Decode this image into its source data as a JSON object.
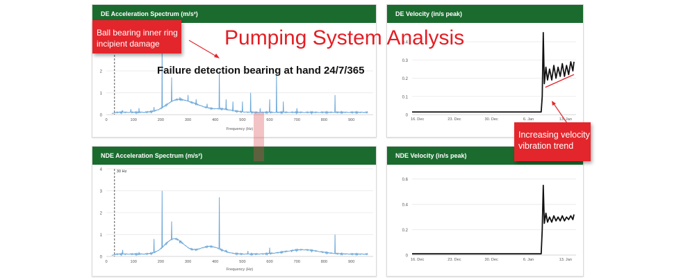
{
  "overlay": {
    "title": "Pumping System Analysis",
    "subtitle": "Failure detection bearing at hand 24/7/365",
    "callout_bearing": "Ball bearing inner ring incipient damage",
    "callout_velocity": "Increasing velocity vibration trend",
    "accent_red": "#e3262c"
  },
  "colors": {
    "header_green": "#1b6b2f",
    "spectrum_blue": "#6aa6d8",
    "trend_black": "#111111"
  },
  "chart_data": [
    {
      "id": "de_accel",
      "type": "line",
      "title": "DE Acceleration Spectrum (m/s²)",
      "xlabel": "Frequency (Hz)",
      "ylabel": "",
      "xlim": [
        0,
        980
      ],
      "ylim": [
        0,
        4
      ],
      "xticks": [
        "0",
        "100",
        "200",
        "300",
        "400",
        "500",
        "600",
        "700",
        "800",
        "900"
      ],
      "yticks": [
        "0",
        "1",
        "2"
      ],
      "marker_line_x": 30,
      "baseline": 0.05,
      "humps": [
        [
          260,
          0.55,
          40
        ],
        [
          330,
          0.25,
          35
        ],
        [
          420,
          0.15,
          40
        ]
      ],
      "peaks": [
        [
          60,
          0.2
        ],
        [
          90,
          0.25
        ],
        [
          120,
          0.3
        ],
        [
          175,
          0.35
        ],
        [
          205,
          3.0
        ],
        [
          240,
          1.7
        ],
        [
          270,
          0.8
        ],
        [
          300,
          0.9
        ],
        [
          330,
          0.7
        ],
        [
          370,
          0.5
        ],
        [
          415,
          2.0
        ],
        [
          440,
          0.7
        ],
        [
          465,
          0.6
        ],
        [
          500,
          0.6
        ],
        [
          530,
          1.0
        ],
        [
          565,
          0.3
        ],
        [
          600,
          0.7
        ],
        [
          625,
          1.8
        ],
        [
          650,
          0.6
        ],
        [
          700,
          0.3
        ],
        [
          840,
          0.9
        ]
      ]
    },
    {
      "id": "nde_accel",
      "type": "line",
      "title": "NDE Acceleration Spectrum (m/s²)",
      "xlabel": "Frequency (Hz)",
      "ylabel": "",
      "xlim": [
        0,
        980
      ],
      "ylim": [
        0,
        4
      ],
      "xticks": [
        "0",
        "100",
        "200",
        "300",
        "400",
        "500",
        "600",
        "700",
        "800",
        "900"
      ],
      "yticks": [
        "0",
        "1",
        "2",
        "3",
        "4"
      ],
      "marker_line_x": 30,
      "marker_label": "30 Hz",
      "baseline": 0.05,
      "humps": [
        [
          250,
          0.7,
          35
        ],
        [
          380,
          0.35,
          40
        ],
        [
          720,
          0.2,
          60
        ]
      ],
      "peaks": [
        [
          60,
          0.3
        ],
        [
          120,
          0.2
        ],
        [
          175,
          0.8
        ],
        [
          205,
          3.0
        ],
        [
          240,
          1.6
        ],
        [
          270,
          0.6
        ],
        [
          330,
          0.3
        ],
        [
          415,
          2.7
        ],
        [
          440,
          0.3
        ],
        [
          520,
          0.25
        ],
        [
          600,
          0.4
        ],
        [
          680,
          0.2
        ],
        [
          840,
          1.0
        ]
      ]
    },
    {
      "id": "de_velocity",
      "type": "line",
      "title": "DE Velocity (in/s peak)",
      "xlabel": "",
      "ylabel": "",
      "xlim": [
        0,
        31
      ],
      "ylim": [
        0,
        0.48
      ],
      "xticks": [
        "16. Dec",
        "23. Dec",
        "30. Dec",
        "6. Jan",
        "13. Jan"
      ],
      "yticks": [
        "0",
        "0.1",
        "0.2",
        "0.3",
        "0.4"
      ],
      "x": [
        0,
        24.4,
        24.6,
        24.8,
        25.0,
        25.3,
        25.6,
        26.0,
        26.4,
        26.8,
        27.2,
        27.6,
        28.0,
        28.4,
        28.8,
        29.2,
        29.6,
        30.0,
        30.4,
        30.6
      ],
      "y": [
        0.015,
        0.015,
        0.1,
        0.45,
        0.17,
        0.26,
        0.19,
        0.25,
        0.19,
        0.27,
        0.2,
        0.26,
        0.21,
        0.28,
        0.21,
        0.27,
        0.22,
        0.29,
        0.24,
        0.29
      ],
      "trend_line": [
        [
          25.2,
          0.15
        ],
        [
          30.6,
          0.22
        ]
      ]
    },
    {
      "id": "nde_velocity",
      "type": "line",
      "title": "NDE Velocity (in/s peak)",
      "xlabel": "",
      "ylabel": "",
      "xlim": [
        0,
        31
      ],
      "ylim": [
        0,
        0.68
      ],
      "xticks": [
        "16. Dec",
        "23. Dec",
        "30. Dec",
        "6. Jan",
        "13. Jan"
      ],
      "yticks": [
        "0",
        "0.2",
        "0.4",
        "0.6"
      ],
      "x": [
        0,
        24.4,
        24.6,
        24.8,
        25.0,
        25.3,
        25.6,
        26.0,
        26.4,
        26.8,
        27.2,
        27.6,
        28.0,
        28.4,
        28.8,
        29.2,
        29.6,
        30.0,
        30.4,
        30.6
      ],
      "y": [
        0.01,
        0.01,
        0.2,
        0.55,
        0.25,
        0.33,
        0.26,
        0.3,
        0.26,
        0.31,
        0.27,
        0.3,
        0.27,
        0.31,
        0.27,
        0.3,
        0.28,
        0.31,
        0.28,
        0.32
      ]
    }
  ]
}
